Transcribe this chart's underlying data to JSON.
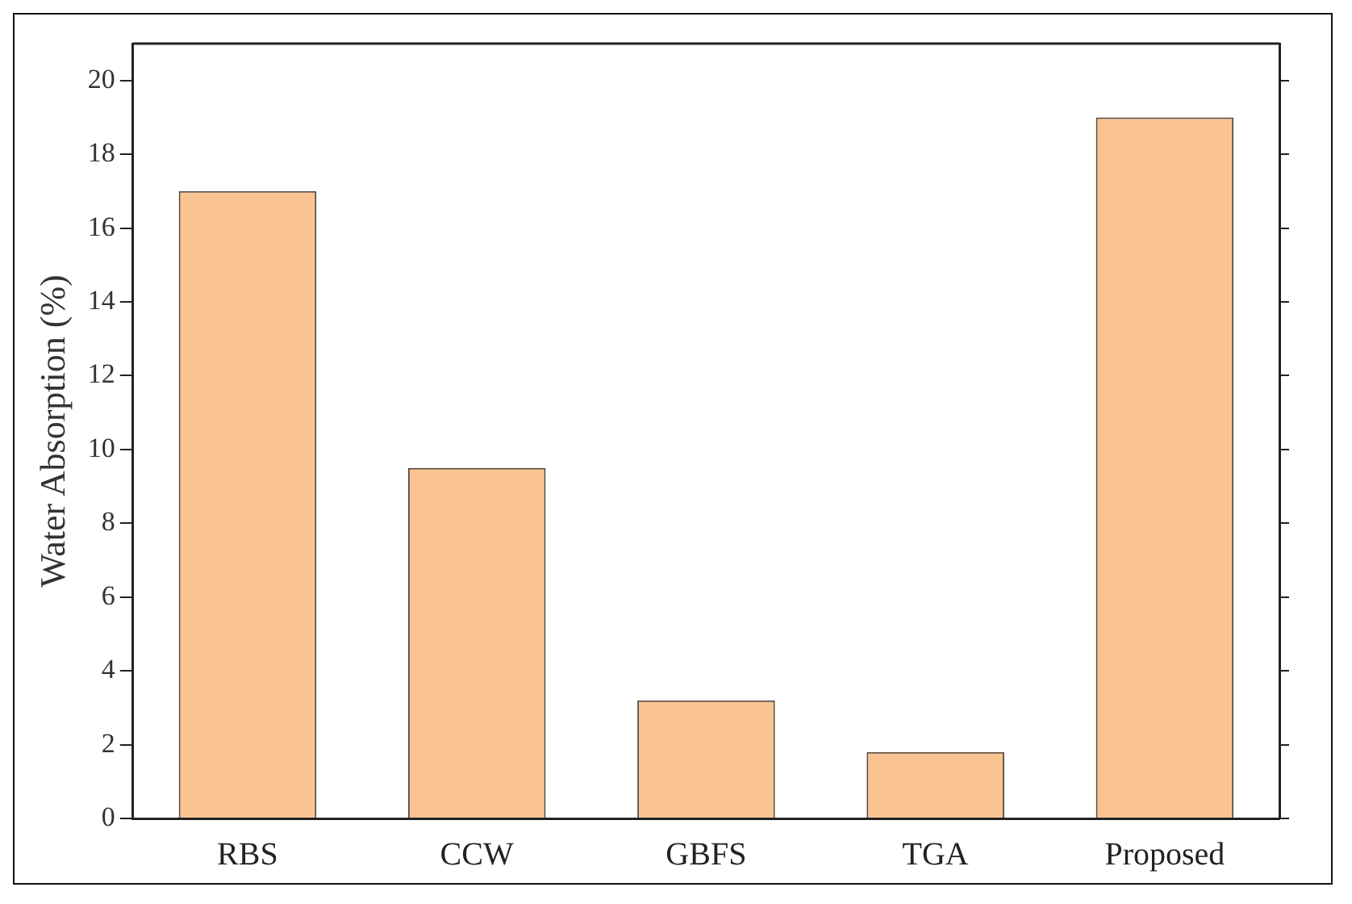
{
  "chart_data": {
    "type": "bar",
    "ylabel": "Water Absorption (%)",
    "categories": [
      "RBS",
      "CCW",
      "GBFS",
      "TGA",
      "Proposed"
    ],
    "values": [
      17,
      9.5,
      3.2,
      1.8,
      19
    ],
    "color": "#f9c492",
    "ylim": [
      0,
      21
    ],
    "yticks": [
      0,
      2,
      4,
      6,
      8,
      10,
      12,
      14,
      16,
      18,
      20
    ],
    "grid": false,
    "legend": false
  }
}
